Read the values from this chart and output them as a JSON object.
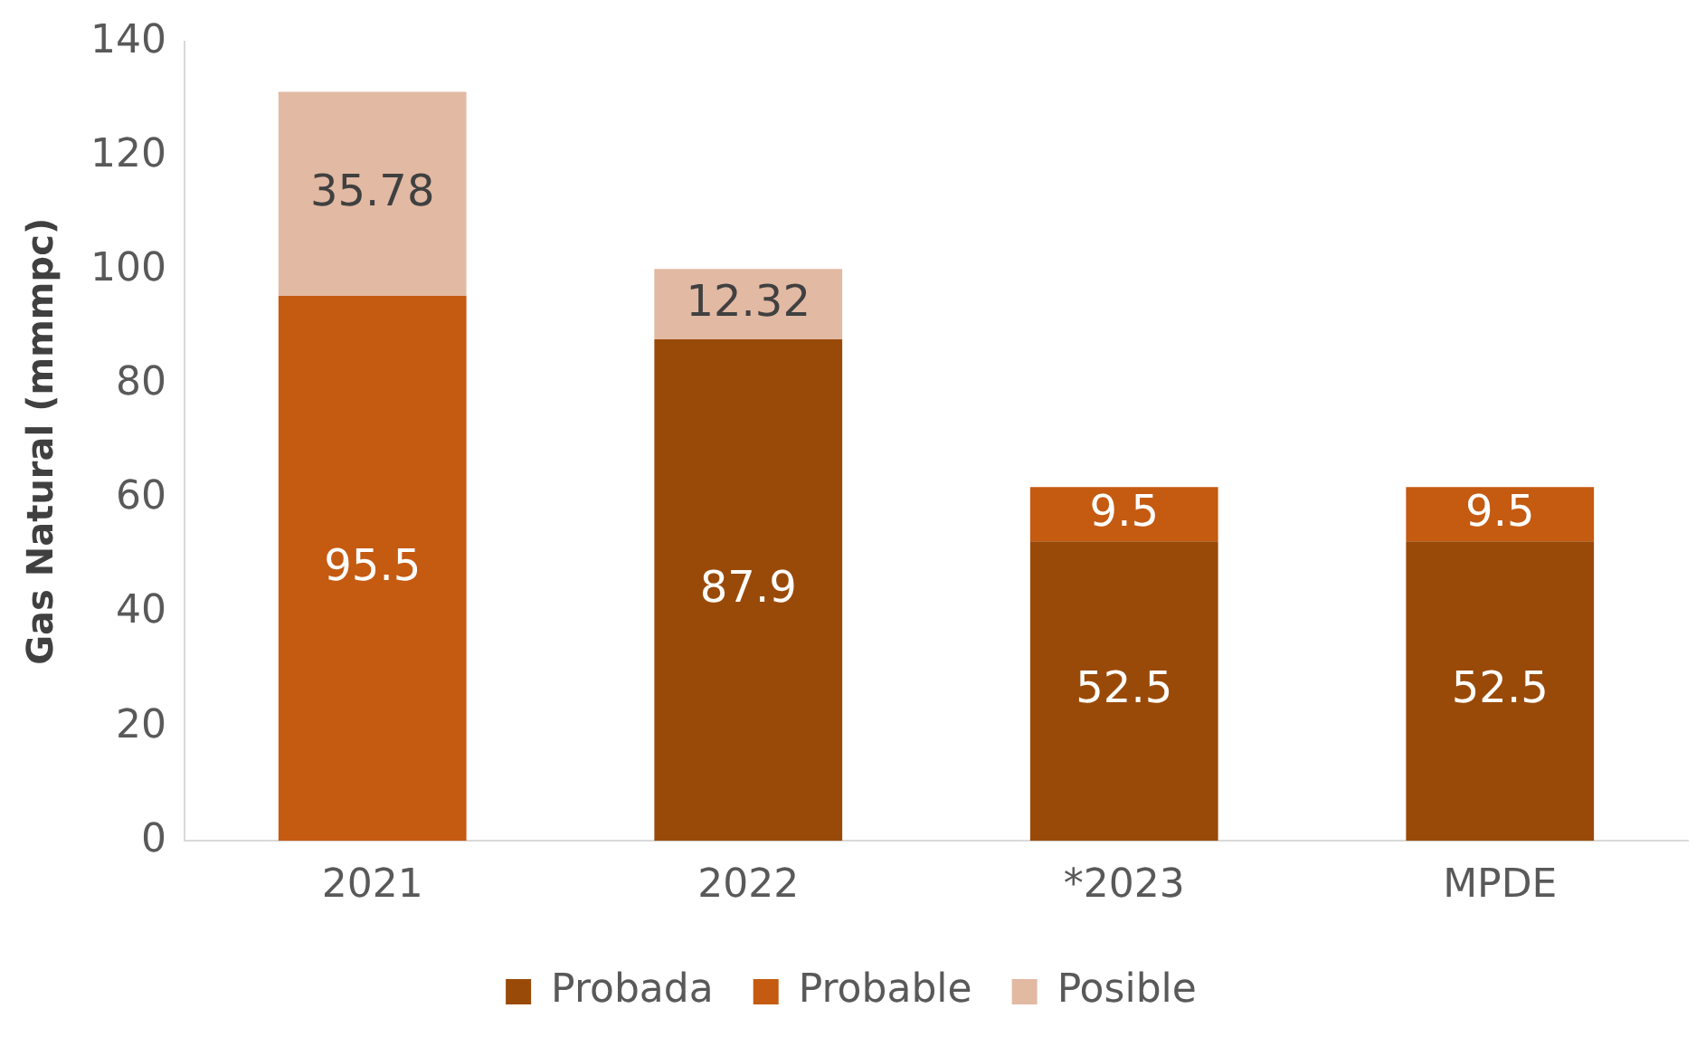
{
  "chart_data": {
    "type": "bar",
    "stacked": true,
    "ylabel": "Gas Natural (mmmpc)",
    "categories": [
      "2021",
      "2022",
      "*2023",
      "MPDE"
    ],
    "series": [
      {
        "name": "Probada",
        "color": "#9a4a08",
        "values": [
          null,
          87.9,
          52.5,
          52.5
        ]
      },
      {
        "name": "Probable",
        "color": "#c55a11",
        "values": [
          95.5,
          null,
          9.5,
          9.5
        ]
      },
      {
        "name": "Posible",
        "color": "#e2b9a3",
        "values": [
          35.78,
          12.32,
          null,
          null
        ]
      }
    ],
    "ylim": [
      0,
      140
    ],
    "yticks": [
      0,
      20,
      40,
      60,
      80,
      100,
      120,
      140
    ],
    "grid": false,
    "legend": "bottom",
    "data_labels": true
  }
}
